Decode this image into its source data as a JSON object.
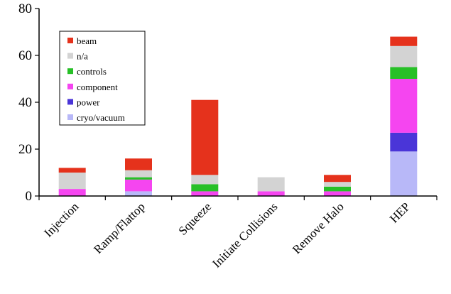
{
  "chart_data": {
    "type": "bar",
    "stacked": true,
    "categories": [
      "Injection",
      "Ramp/Flattop",
      "Squeeze",
      "Initiate Collisions",
      "Remove Halo",
      "HEP"
    ],
    "ylim": [
      0,
      80
    ],
    "yticks": [
      0,
      20,
      40,
      60,
      80
    ],
    "grid": false,
    "legend_position": "top-left",
    "series": [
      {
        "name": "cryo/vacuum",
        "color": "#b8b8f8",
        "values": [
          0,
          2,
          0,
          0,
          0,
          19
        ]
      },
      {
        "name": "power",
        "color": "#4a35d8",
        "values": [
          0,
          0,
          0,
          0,
          0,
          8
        ]
      },
      {
        "name": "component",
        "color": "#f545f0",
        "values": [
          3,
          5,
          2,
          2,
          2,
          23
        ]
      },
      {
        "name": "controls",
        "color": "#27c027",
        "values": [
          0,
          1,
          3,
          0,
          2,
          5
        ]
      },
      {
        "name": "n/a",
        "color": "#d3d3d3",
        "values": [
          7,
          3,
          4,
          6,
          2,
          9
        ]
      },
      {
        "name": "beam",
        "color": "#e5321c",
        "values": [
          2,
          5,
          32,
          0,
          3,
          4
        ]
      }
    ],
    "legend_order": [
      "beam",
      "n/a",
      "controls",
      "component",
      "power",
      "cryo/vacuum"
    ]
  }
}
